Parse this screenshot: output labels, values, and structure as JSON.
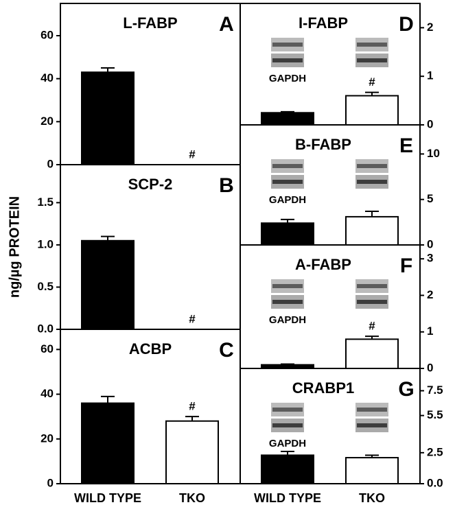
{
  "y_label": "ng/µg PROTEIN",
  "chart_data": [
    {
      "type": "bar",
      "title": "L-FABP",
      "panel": "A",
      "values": [
        43,
        0
      ],
      "errors": [
        2,
        0
      ],
      "value_annotations": [
        null,
        "#"
      ],
      "colors": [
        "#000000",
        "#ffffff"
      ],
      "ylim": [
        0,
        75
      ],
      "yticks": [
        0,
        20,
        40,
        60
      ]
    },
    {
      "type": "bar",
      "title": "SCP-2",
      "panel": "B",
      "values": [
        1.05,
        0
      ],
      "errors": [
        0.05,
        0
      ],
      "value_annotations": [
        null,
        "#"
      ],
      "colors": [
        "#000000",
        "#ffffff"
      ],
      "ylim": [
        0,
        1.95
      ],
      "yticks": [
        {
          "value": 0,
          "label": "0.0"
        },
        0.5,
        {
          "value": 1,
          "label": "1.0"
        },
        1.5
      ]
    },
    {
      "type": "bar",
      "title": "ACBP",
      "panel": "C",
      "categories": [
        "WILD TYPE",
        "TKO"
      ],
      "values": [
        36,
        28
      ],
      "errors": [
        3,
        2
      ],
      "value_annotations": [
        null,
        "#"
      ],
      "colors": [
        "#000000",
        "#ffffff"
      ],
      "ylim": [
        0,
        69
      ],
      "yticks": [
        0,
        20,
        40,
        60
      ]
    },
    {
      "type": "bar",
      "title": "I-FABP",
      "panel": "D",
      "blot_label": "GAPDH",
      "values": [
        0.25,
        0.6
      ],
      "errors": [
        0.02,
        0.07
      ],
      "value_annotations": [
        null,
        "#"
      ],
      "colors": [
        "#000000",
        "#ffffff"
      ],
      "ylim": [
        0,
        2.5
      ],
      "yticks": [
        0,
        1,
        2
      ]
    },
    {
      "type": "bar",
      "title": "B-FABP",
      "panel": "E",
      "blot_label": "GAPDH",
      "values": [
        2.4,
        3.1
      ],
      "errors": [
        0.4,
        0.6
      ],
      "colors": [
        "#000000",
        "#ffffff"
      ],
      "ylim": [
        0,
        13.2
      ],
      "yticks": [
        0,
        5,
        10
      ]
    },
    {
      "type": "bar",
      "title": "A-FABP",
      "panel": "F",
      "blot_label": "GAPDH",
      "values": [
        0.1,
        0.8
      ],
      "errors": [
        0.02,
        0.08
      ],
      "value_annotations": [
        null,
        "#"
      ],
      "colors": [
        "#000000",
        "#ffffff"
      ],
      "ylim": [
        0,
        3.38
      ],
      "yticks": [
        0,
        1,
        2,
        3
      ]
    },
    {
      "type": "bar",
      "title": "CRABP1",
      "panel": "G",
      "blot_label": "GAPDH",
      "categories": [
        "WILD TYPE",
        "TKO"
      ],
      "values": [
        2.3,
        2.1
      ],
      "errors": [
        0.3,
        0.2
      ],
      "colors": [
        "#000000",
        "#ffffff"
      ],
      "ylim": [
        0,
        9.3
      ],
      "yticks": [
        {
          "value": 0,
          "label": "0.0"
        },
        2.5,
        5.5,
        7.5
      ]
    }
  ]
}
